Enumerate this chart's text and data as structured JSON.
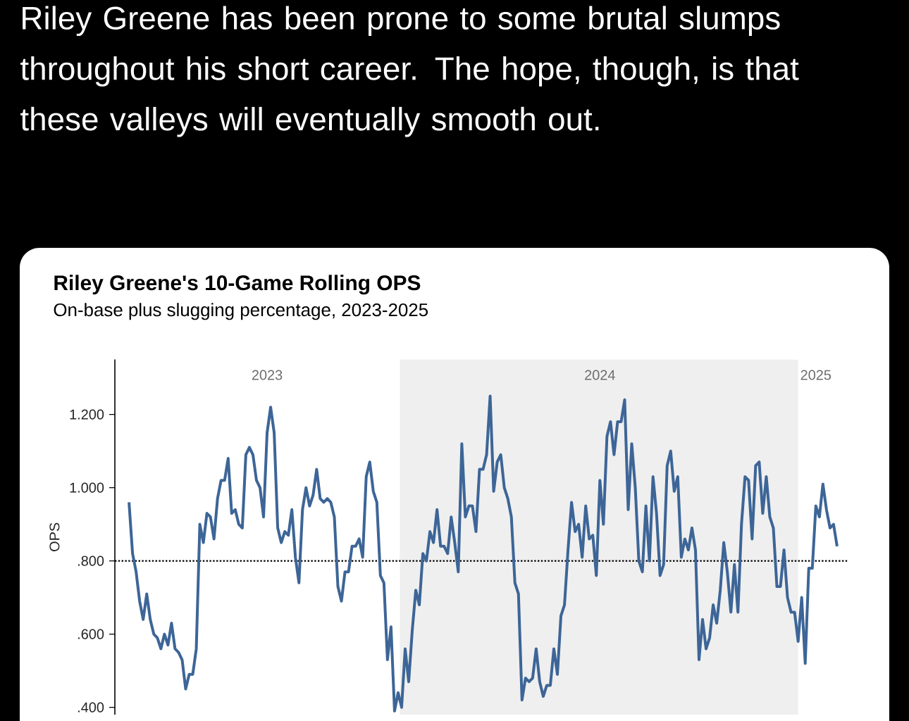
{
  "chart_data": {
    "type": "line",
    "title": "Riley Greene's 10-Game Rolling OPS",
    "subtitle": "On-base plus slugging percentage, 2023-2025",
    "ylabel": "OPS",
    "annotations": [
      "Riley Greene has been prone to some brutal slumps throughout his short career. The hope, though, is that these valleys will eventually smooth out."
    ],
    "categories": [
      null,
      null,
      null,
      null,
      null,
      null,
      null,
      null,
      null,
      null,
      null,
      null,
      null,
      null,
      null,
      null,
      null,
      null,
      null,
      null,
      null,
      null,
      null,
      null,
      null,
      null,
      null,
      null,
      null,
      null,
      null,
      null,
      null,
      null,
      null,
      null,
      null,
      null,
      null,
      "2023",
      null,
      null,
      null,
      null,
      null,
      null,
      null,
      null,
      null,
      null,
      null,
      null,
      null,
      null,
      null,
      null,
      null,
      null,
      null,
      null,
      null,
      null,
      null,
      null,
      null,
      null,
      null,
      null,
      null,
      null,
      null,
      null,
      null,
      null,
      null,
      null,
      null,
      null,
      null,
      null,
      null,
      null,
      null,
      null,
      null,
      null,
      null,
      null,
      null,
      null,
      null,
      null,
      null,
      null,
      null,
      null,
      null,
      null,
      null,
      null,
      null,
      null,
      null,
      null,
      null,
      null,
      null,
      null,
      null,
      null,
      null,
      null,
      null,
      null,
      null,
      null,
      null,
      null,
      null,
      null,
      null,
      null,
      null,
      null,
      null,
      null,
      null,
      null,
      null,
      null,
      null,
      null,
      null,
      "2024",
      null,
      null,
      null,
      null,
      null,
      null,
      null,
      null,
      null,
      null,
      null,
      null,
      null,
      null,
      null,
      null,
      null,
      null,
      null,
      null,
      null,
      null,
      null,
      null,
      null,
      null,
      null,
      null,
      null,
      null,
      null,
      null,
      null,
      null,
      null,
      null,
      null,
      null,
      null,
      null,
      null,
      null,
      null,
      null,
      null,
      null,
      null,
      null,
      null,
      null,
      null,
      null,
      null,
      null,
      null,
      null,
      null,
      null,
      null,
      null,
      "2025",
      null,
      null,
      null,
      null,
      null,
      null
    ],
    "series": [
      {
        "color": "#3d6597",
        "line_style": "solid",
        "values": [
          0.96,
          0.82,
          0.77,
          0.69,
          0.64,
          0.71,
          0.64,
          0.6,
          0.59,
          0.56,
          0.6,
          0.57,
          0.63,
          0.56,
          0.55,
          0.53,
          0.45,
          0.49,
          0.49,
          0.56,
          0.9,
          0.85,
          0.93,
          0.92,
          0.86,
          0.97,
          1.02,
          1.02,
          1.08,
          0.93,
          0.94,
          0.9,
          0.89,
          1.09,
          1.11,
          1.09,
          1.02,
          1.0,
          0.92,
          1.15,
          1.22,
          1.15,
          0.89,
          0.85,
          0.88,
          0.87,
          0.94,
          0.81,
          0.74,
          0.94,
          1.0,
          0.95,
          0.98,
          1.05,
          0.97,
          0.96,
          0.97,
          0.96,
          0.92,
          0.73,
          0.69,
          0.77,
          0.77,
          0.84,
          0.84,
          0.86,
          0.81,
          1.03,
          1.07,
          0.99,
          0.96,
          0.76,
          0.74,
          0.53,
          0.62,
          0.39,
          0.44,
          0.4,
          0.56,
          0.47,
          0.61,
          0.72,
          0.68,
          0.82,
          0.8,
          0.88,
          0.85,
          0.94,
          0.84,
          0.84,
          0.82,
          0.92,
          0.85,
          0.77,
          1.12,
          0.92,
          0.95,
          0.95,
          0.88,
          1.05,
          1.05,
          1.09,
          1.25,
          0.99,
          1.07,
          1.09,
          1.0,
          0.97,
          0.92,
          0.74,
          0.71,
          0.42,
          0.48,
          0.47,
          0.48,
          0.56,
          0.47,
          0.43,
          0.46,
          0.46,
          0.56,
          0.49,
          0.65,
          0.68,
          0.83,
          0.96,
          0.88,
          0.9,
          0.81,
          0.95,
          0.86,
          0.87,
          0.76,
          1.02,
          0.9,
          1.14,
          1.18,
          1.09,
          1.18,
          1.18,
          1.24,
          0.94,
          1.12,
          1.0,
          0.8,
          0.77,
          0.95,
          0.8,
          1.03,
          0.93,
          0.76,
          0.79,
          1.06,
          1.1,
          0.99,
          1.03,
          0.81,
          0.86,
          0.83,
          0.89,
          0.83,
          0.53,
          0.64,
          0.56,
          0.59,
          0.68,
          0.63,
          0.72,
          0.85,
          0.77,
          0.66,
          0.79,
          0.66,
          0.9,
          1.03,
          1.02,
          0.86,
          1.06,
          1.07,
          0.93,
          1.03,
          0.92,
          0.89,
          0.73,
          0.73,
          0.83,
          0.7,
          0.66,
          0.66,
          0.58,
          0.7,
          0.52,
          0.78,
          0.78,
          0.95,
          0.92,
          1.01,
          0.94,
          0.89,
          0.9,
          0.84
        ]
      }
    ],
    "ylim": [
      0.38,
      1.35
    ],
    "yticks": [
      {
        "value": 0.4,
        "label": ".400"
      },
      {
        "value": 0.6,
        "label": ".600"
      },
      {
        "value": 0.8,
        "label": ".800"
      },
      {
        "value": 1.0,
        "label": "1.000"
      },
      {
        "value": 1.2,
        "label": "1.200"
      }
    ],
    "ref_lines": [
      {
        "axis": "y",
        "value": 0.8,
        "color": "#000000",
        "line_style": "dotted"
      }
    ]
  }
}
